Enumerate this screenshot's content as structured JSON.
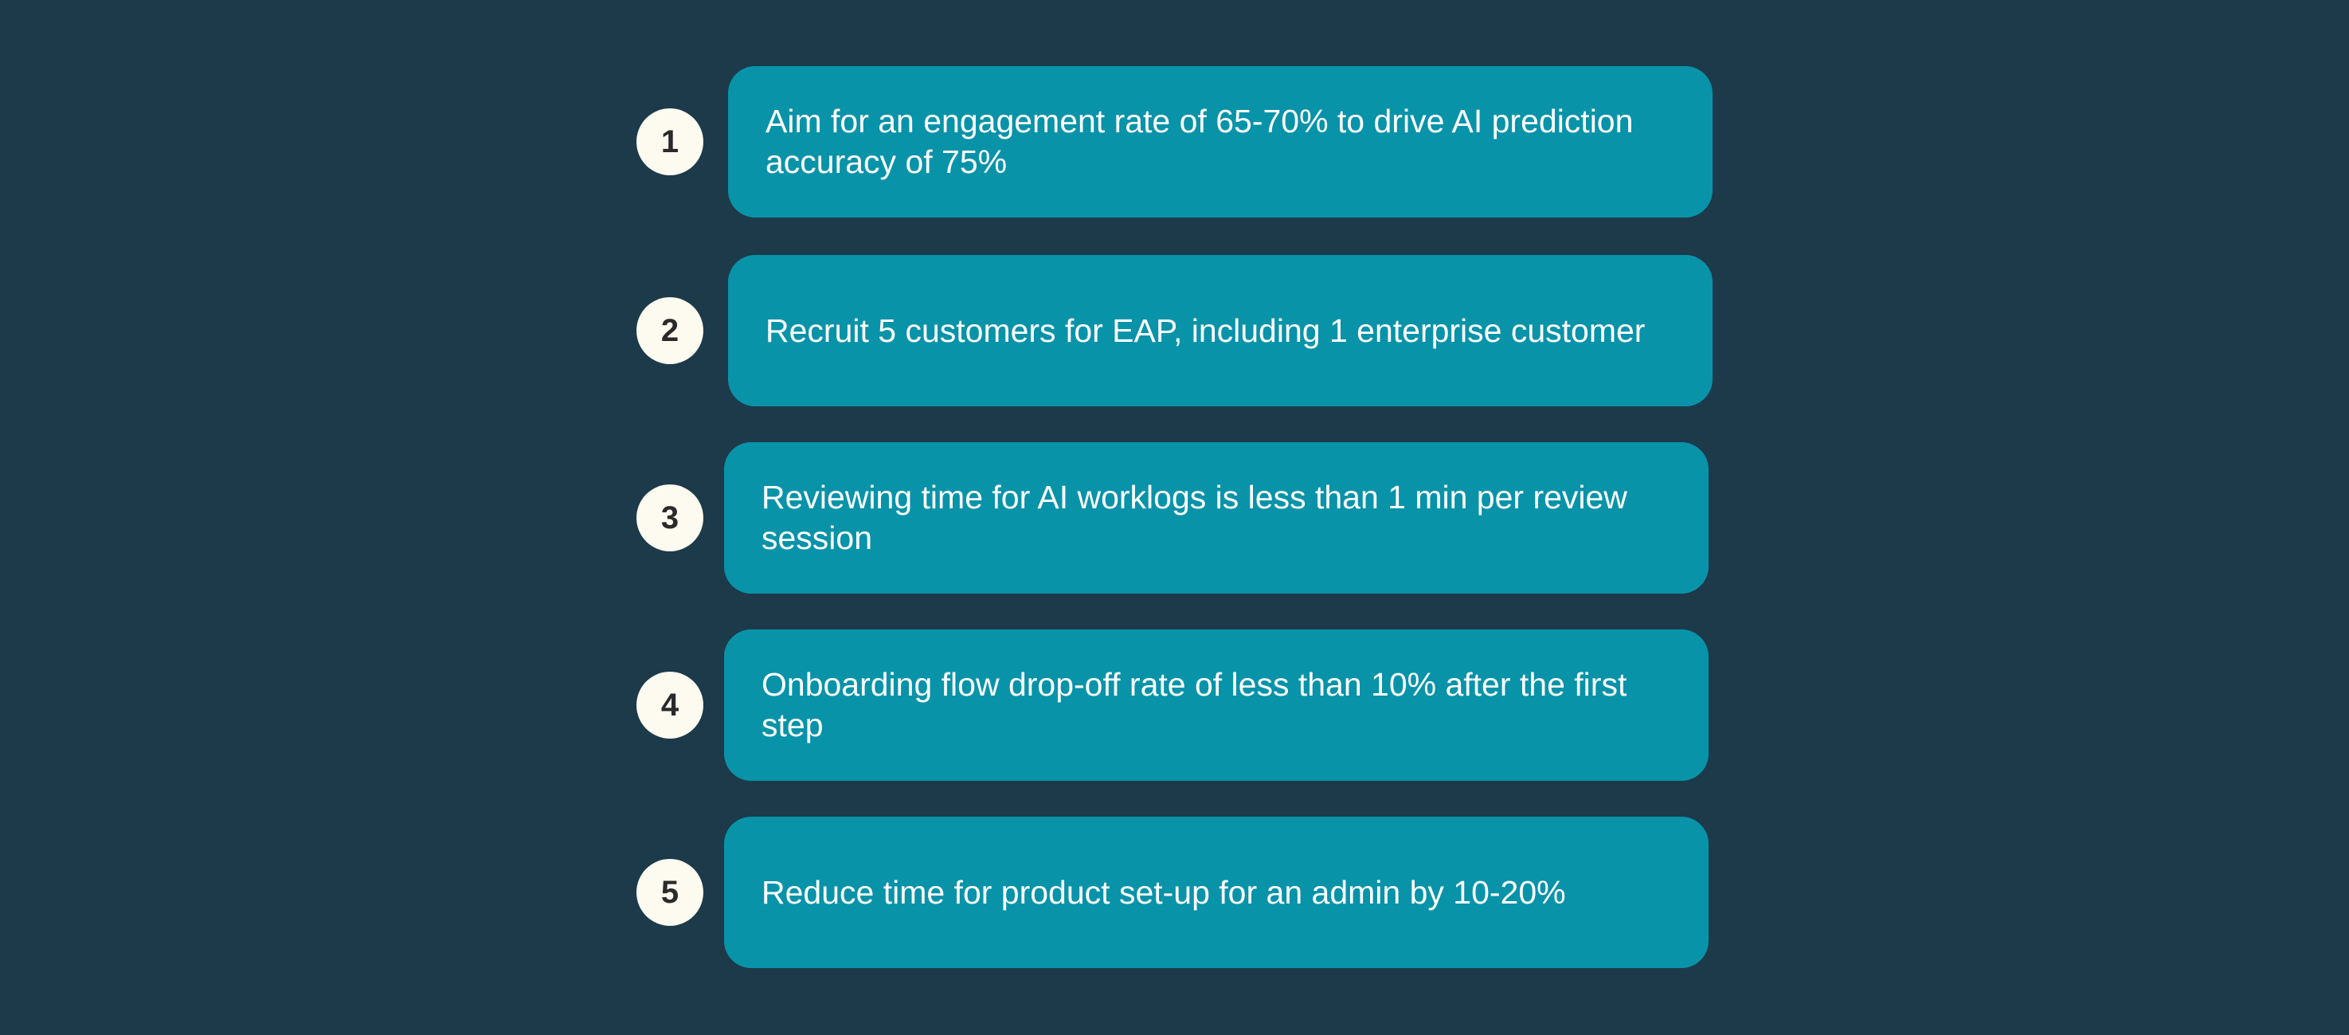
{
  "colors": {
    "background": "#1c3a4a",
    "card": "#0893a9",
    "badge": "#fdfaf0",
    "badge_text": "#2a2a2a",
    "card_text": "#ffffff"
  },
  "items": [
    {
      "number": "1",
      "text": "Aim for an engagement rate of 65-70% to drive AI prediction accuracy of 75%"
    },
    {
      "number": "2",
      "text": "Recruit 5 customers for EAP, including 1 enterprise customer"
    },
    {
      "number": "3",
      "text": "Reviewing time for AI worklogs is less than 1 min per review session"
    },
    {
      "number": "4",
      "text": "Onboarding flow drop-off rate of less than 10% after the first step"
    },
    {
      "number": "5",
      "text": "Reduce time for product set-up for an admin by 10-20%"
    }
  ]
}
